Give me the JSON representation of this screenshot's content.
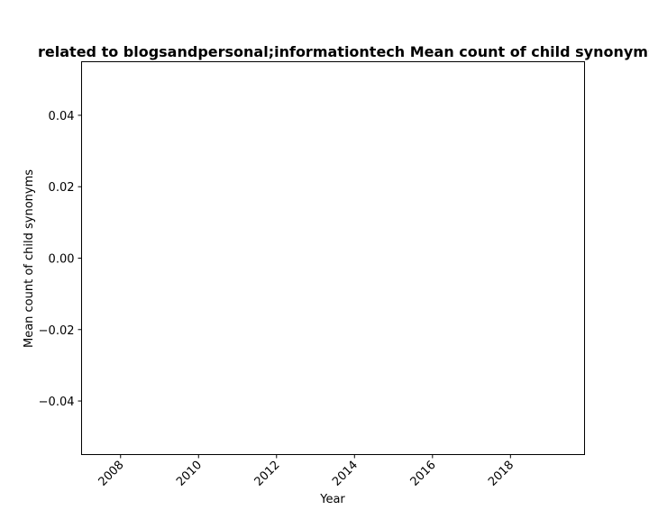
{
  "chart_data": {
    "type": "line",
    "title": "related to blogsandpersonal;informationtech Mean count of child synonyms in p",
    "xlabel": "Year",
    "ylabel": "Mean count of child synonyms",
    "x_ticks": [
      "2008",
      "2010",
      "2012",
      "2014",
      "2016",
      "2018"
    ],
    "y_ticks": [
      "0.04",
      "0.02",
      "0.00",
      "−0.02",
      "−0.04"
    ],
    "xlim": [
      2007,
      2019.9
    ],
    "ylim": [
      -0.055,
      0.055
    ],
    "series": [],
    "grid": false,
    "legend": "none"
  }
}
